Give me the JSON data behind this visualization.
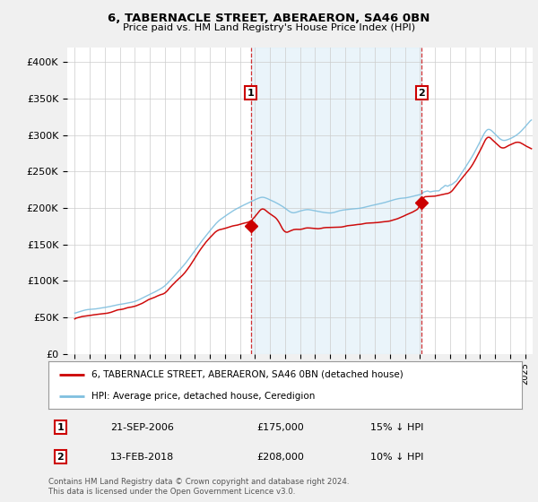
{
  "title": "6, TABERNACLE STREET, ABERAERON, SA46 0BN",
  "subtitle": "Price paid vs. HM Land Registry's House Price Index (HPI)",
  "hpi_label": "HPI: Average price, detached house, Ceredigion",
  "price_label": "6, TABERNACLE STREET, ABERAERON, SA46 0BN (detached house)",
  "hpi_color": "#7fbfdf",
  "hpi_fill_color": "#ddeef7",
  "price_color": "#cc0000",
  "vline_color": "#cc0000",
  "transaction1": {
    "date": "21-SEP-2006",
    "price": 175000,
    "pct": "15% ↓ HPI",
    "x": 2006.72
  },
  "transaction2": {
    "date": "13-FEB-2018",
    "price": 208000,
    "pct": "10% ↓ HPI",
    "x": 2018.12
  },
  "ylim": [
    0,
    420000
  ],
  "yticks": [
    0,
    50000,
    100000,
    150000,
    200000,
    250000,
    300000,
    350000,
    400000
  ],
  "ytick_labels": [
    "£0",
    "£50K",
    "£100K",
    "£150K",
    "£200K",
    "£250K",
    "£300K",
    "£350K",
    "£400K"
  ],
  "xlim_start": 1994.5,
  "xlim_end": 2025.5,
  "footer": "Contains HM Land Registry data © Crown copyright and database right 2024.\nThis data is licensed under the Open Government Licence v3.0.",
  "background_color": "#f0f0f0",
  "plot_background": "#ffffff"
}
